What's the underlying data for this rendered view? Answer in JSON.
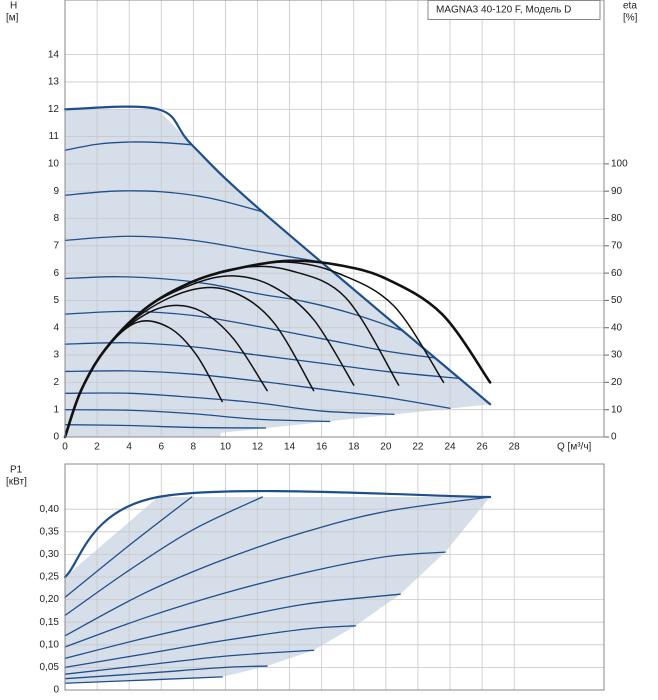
{
  "chart_data": [
    {
      "type": "line",
      "title": "MAGNA3 40-120 F, Модель D",
      "ylabel": "H",
      "yunit": "[м]",
      "y2label": "eta",
      "y2unit": "[%]",
      "xlabel": "Q [м³/ч]",
      "xlim": [
        0,
        33.6
      ],
      "ylim": [
        0,
        16
      ],
      "y2lim": [
        0,
        160
      ],
      "xticks": [
        0,
        2,
        4,
        6,
        8,
        10,
        12,
        14,
        16,
        18,
        20,
        22,
        24,
        26,
        28
      ],
      "yticks": [
        0,
        1,
        2,
        3,
        4,
        5,
        6,
        7,
        8,
        9,
        10,
        11,
        12,
        13,
        14
      ],
      "y2ticks": [
        0,
        10,
        20,
        30,
        40,
        50,
        60,
        70,
        80,
        90,
        100
      ],
      "grid": true,
      "series": [
        {
          "kind": "area",
          "color": "#d6dee9",
          "x": [
            0,
            5.8,
            7.9,
            12.3,
            26.5,
            9.7,
            9.7,
            0
          ],
          "values": [
            12,
            12,
            10.7,
            8.25,
            1.2,
            0.15,
            0,
            0
          ]
        },
        {
          "kind": "line",
          "style": "bold",
          "color": "#1f4f8b",
          "x": [
            0,
            5.8,
            7.9,
            12.3,
            26.5
          ],
          "values": [
            12,
            12,
            10.7,
            8.25,
            1.2
          ]
        },
        {
          "kind": "line",
          "color": "#1f4f8b",
          "x": [
            0,
            2,
            4,
            6,
            7.9
          ],
          "values": [
            10.5,
            10.72,
            10.8,
            10.78,
            10.7
          ]
        },
        {
          "kind": "line",
          "color": "#1f4f8b",
          "x": [
            0,
            3,
            6,
            9,
            12.3
          ],
          "values": [
            8.85,
            9.0,
            8.98,
            8.75,
            8.25
          ]
        },
        {
          "kind": "line",
          "color": "#1f4f8b",
          "x": [
            0,
            4,
            8,
            12,
            16
          ],
          "values": [
            7.2,
            7.35,
            7.2,
            6.8,
            6.4
          ]
        },
        {
          "kind": "line",
          "color": "#1f4f8b",
          "x": [
            0,
            3,
            6,
            9,
            12,
            15,
            18,
            21
          ],
          "values": [
            5.8,
            5.87,
            5.8,
            5.6,
            5.25,
            4.95,
            4.5,
            3.9
          ]
        },
        {
          "kind": "line",
          "color": "#1f4f8b",
          "x": [
            0,
            4,
            8,
            12,
            16,
            20,
            23
          ],
          "values": [
            4.5,
            4.6,
            4.45,
            4.05,
            3.6,
            3.15,
            2.9
          ]
        },
        {
          "kind": "line",
          "color": "#1f4f8b",
          "x": [
            0,
            4,
            8,
            12,
            16,
            20,
            24.5
          ],
          "values": [
            3.4,
            3.45,
            3.3,
            3.0,
            2.7,
            2.4,
            2.15
          ]
        },
        {
          "kind": "line",
          "color": "#1f4f8b",
          "x": [
            0,
            4,
            8,
            12,
            16,
            20,
            24
          ],
          "values": [
            2.4,
            2.42,
            2.3,
            2.05,
            1.75,
            1.45,
            1.05
          ]
        },
        {
          "kind": "line",
          "color": "#1f4f8b",
          "x": [
            0,
            4,
            8,
            12,
            16,
            20.5
          ],
          "values": [
            1.6,
            1.6,
            1.45,
            1.25,
            0.95,
            0.83
          ]
        },
        {
          "kind": "line",
          "color": "#1f4f8b",
          "x": [
            0,
            4,
            8,
            12,
            16.5
          ],
          "values": [
            1.0,
            0.98,
            0.85,
            0.65,
            0.57
          ]
        },
        {
          "kind": "line",
          "color": "#1f4f8b",
          "x": [
            0,
            4,
            8,
            12.5
          ],
          "values": [
            0.45,
            0.42,
            0.35,
            0.33
          ]
        },
        {
          "kind": "line",
          "axis": "y2",
          "color": "#111111",
          "x": [
            0,
            1,
            2.5,
            4.5,
            6.5,
            8.2,
            9.8
          ],
          "values": [
            0,
            17,
            32,
            42,
            40,
            30,
            13
          ]
        },
        {
          "kind": "line",
          "axis": "y2",
          "color": "#111111",
          "x": [
            0,
            1,
            2.5,
            4.5,
            6.5,
            8.5,
            10.5,
            12.6
          ],
          "values": [
            0,
            17,
            32,
            43,
            48,
            46,
            36,
            17
          ]
        },
        {
          "kind": "line",
          "axis": "y2",
          "color": "#111111",
          "x": [
            0,
            1,
            2.5,
            5,
            8,
            10.5,
            13,
            15.5
          ],
          "values": [
            0,
            17,
            32,
            46,
            54,
            53,
            42,
            17
          ]
        },
        {
          "kind": "line",
          "axis": "y2",
          "color": "#111111",
          "x": [
            0,
            1,
            2.5,
            5,
            8,
            10.5,
            13,
            15.5,
            18
          ],
          "values": [
            0,
            17,
            32,
            47,
            56,
            59,
            55,
            43,
            19
          ]
        },
        {
          "kind": "line",
          "axis": "y2",
          "color": "#111111",
          "x": [
            0,
            1,
            2.5,
            5,
            8,
            11,
            14,
            17.5,
            20.8
          ],
          "values": [
            0,
            17,
            32,
            47,
            57,
            62,
            61,
            51,
            19
          ]
        },
        {
          "kind": "line",
          "axis": "y2",
          "color": "#111111",
          "x": [
            0,
            1,
            2.5,
            5,
            8,
            11,
            14,
            17,
            20.5,
            23.6
          ],
          "values": [
            0,
            17,
            32,
            47,
            57,
            62,
            64,
            60,
            48,
            20
          ]
        },
        {
          "kind": "line",
          "axis": "y2",
          "style": "bold",
          "color": "#111111",
          "x": [
            0,
            1,
            2.5,
            5,
            8,
            11,
            14,
            17,
            20,
            23.5,
            26.5
          ],
          "values": [
            0,
            17,
            32,
            47,
            57,
            62,
            64.5,
            63,
            58,
            45,
            20
          ]
        }
      ]
    },
    {
      "type": "line",
      "ylabel": "P1",
      "yunit": "[кВт]",
      "xlim": [
        0,
        33.6
      ],
      "ylim": [
        0,
        0.5
      ],
      "xticks": [
        0,
        2,
        4,
        6,
        8,
        10,
        12,
        14,
        16,
        18,
        20,
        22,
        24,
        26,
        28
      ],
      "yticks": [
        0,
        {
          "value": 0.05,
          "label": "0,05"
        },
        {
          "value": 0.1,
          "label": "0,10"
        },
        {
          "value": 0.15,
          "label": "0,15"
        },
        {
          "value": 0.2,
          "label": "0,20"
        },
        {
          "value": 0.25,
          "label": "0,25"
        },
        {
          "value": 0.3,
          "label": "0,30"
        },
        {
          "value": 0.35,
          "label": "0,35"
        },
        {
          "value": 0.4,
          "label": "0,40"
        }
      ],
      "grid": true,
      "series": [
        {
          "kind": "area",
          "color": "#d6dee9",
          "x": [
            0,
            5.8,
            26.5,
            23.7,
            20.9,
            18.1,
            15.5,
            12.6,
            9.8,
            0
          ],
          "values": [
            0.25,
            0.427,
            0.427,
            0.305,
            0.212,
            0.142,
            0.088,
            0.053,
            0.029,
            0.015
          ]
        },
        {
          "kind": "line",
          "style": "bold",
          "color": "#1f4f8b",
          "x": [
            0,
            5.8,
            26.5
          ],
          "values": [
            0.25,
            0.427,
            0.427
          ]
        },
        {
          "kind": "line",
          "color": "#1f4f8b",
          "x": [
            0,
            4,
            7.9
          ],
          "values": [
            0.205,
            0.32,
            0.427
          ]
        },
        {
          "kind": "line",
          "color": "#1f4f8b",
          "x": [
            0,
            4,
            8,
            12.3
          ],
          "values": [
            0.165,
            0.265,
            0.355,
            0.427
          ]
        },
        {
          "kind": "line",
          "color": "#1f4f8b",
          "x": [
            0,
            5,
            10,
            15,
            20,
            26.5
          ],
          "values": [
            0.12,
            0.215,
            0.29,
            0.35,
            0.395,
            0.427
          ]
        },
        {
          "kind": "line",
          "color": "#1f4f8b",
          "x": [
            0,
            5,
            10,
            15,
            20,
            23.7
          ],
          "values": [
            0.095,
            0.16,
            0.215,
            0.26,
            0.295,
            0.305
          ]
        },
        {
          "kind": "line",
          "color": "#1f4f8b",
          "x": [
            0,
            5,
            10,
            15,
            20.9
          ],
          "values": [
            0.07,
            0.115,
            0.155,
            0.19,
            0.212
          ]
        },
        {
          "kind": "line",
          "color": "#1f4f8b",
          "x": [
            0,
            5,
            10,
            15,
            18.1
          ],
          "values": [
            0.05,
            0.08,
            0.11,
            0.135,
            0.142
          ]
        },
        {
          "kind": "line",
          "color": "#1f4f8b",
          "x": [
            0,
            5,
            10,
            15.5
          ],
          "values": [
            0.035,
            0.055,
            0.075,
            0.088
          ]
        },
        {
          "kind": "line",
          "color": "#1f4f8b",
          "x": [
            0,
            5,
            10,
            12.6
          ],
          "values": [
            0.025,
            0.037,
            0.05,
            0.053
          ]
        },
        {
          "kind": "line",
          "color": "#1f4f8b",
          "x": [
            0,
            5,
            9.8
          ],
          "values": [
            0.015,
            0.022,
            0.029
          ]
        }
      ]
    }
  ]
}
